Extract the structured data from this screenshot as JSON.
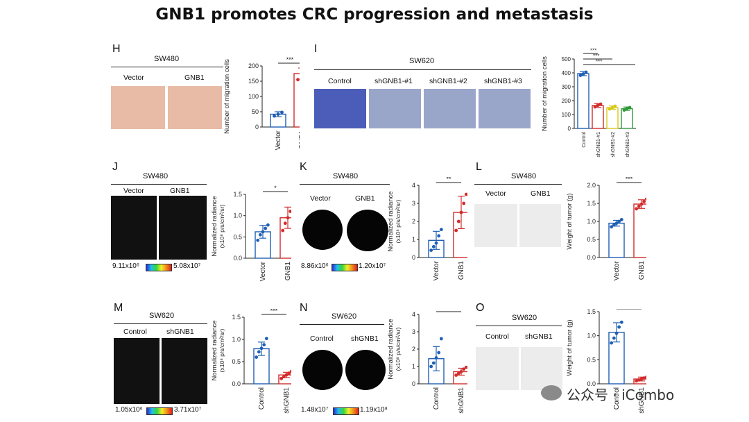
{
  "title": "GNB1 promotes CRC progression and metastasis",
  "panels": {
    "H": {
      "label": "H",
      "cell_line": "SW480",
      "groups": [
        "Vector",
        "GNB1"
      ],
      "ylabel": "Number of migration cells",
      "sig": "***"
    },
    "I": {
      "label": "I",
      "cell_line": "SW620",
      "groups": [
        "Control",
        "shGNB1-#1",
        "shGNB1-#2",
        "shGNB1-#3"
      ],
      "ylabel": "Number of migration cells",
      "sig": [
        "***",
        "***",
        "***"
      ]
    },
    "J": {
      "label": "J",
      "cell_line": "SW480",
      "groups": [
        "Vector",
        "GNB1"
      ],
      "ylabel": "Normalized radiance",
      "ylabel2": "(x10⁸ p/s/cm²/sr)",
      "sig": "*",
      "scale_min": "9.11x10⁶",
      "scale_max": "5.08x10⁷"
    },
    "K": {
      "label": "K",
      "cell_line": "SW480",
      "groups": [
        "Vector",
        "GNB1"
      ],
      "ylabel": "Normalized radiance",
      "ylabel2": "(x10⁸ p/s/cm²/sr)",
      "sig": "**",
      "scale_min": "8.86x10⁶",
      "scale_max": "1.20x10⁷"
    },
    "L": {
      "label": "L",
      "cell_line": "SW480",
      "groups": [
        "Vector",
        "GNB1"
      ],
      "ylabel": "Weight of tumor (g)",
      "sig": "***"
    },
    "M": {
      "label": "M",
      "cell_line": "SW620",
      "groups": [
        "Control",
        "shGNB1"
      ],
      "ylabel": "Normalized radiance",
      "ylabel2": "(x10⁸ p/s/cm²/sr)",
      "sig": "***",
      "scale_min": "1.05x10⁶",
      "scale_max": "3.71x10⁷"
    },
    "N": {
      "label": "N",
      "cell_line": "SW620",
      "groups": [
        "Control",
        "shGNB1"
      ],
      "ylabel": "Normalized radiance",
      "ylabel2": "(x10⁸ p/s/cm²/sr)",
      "sig": "*",
      "scale_min": "1.48x10⁷",
      "scale_max": "1.19x10⁸"
    },
    "O": {
      "label": "O",
      "cell_line": "SW620",
      "groups": [
        "Control",
        "shGNB1"
      ],
      "ylabel": "Weight of tumor (g)",
      "sig": "***"
    }
  },
  "watermark": "公众号 · iCombo",
  "chart_data": [
    {
      "panel": "H",
      "type": "bar",
      "categories": [
        "Vector",
        "GNB1"
      ],
      "values": [
        42,
        175
      ],
      "errors": [
        8,
        18
      ],
      "points": [
        [
          36,
          42,
          48
        ],
        [
          155,
          178,
          192
        ]
      ],
      "ylim": [
        0,
        200
      ],
      "yticks": [
        0,
        50,
        100,
        150,
        200
      ],
      "colors": [
        "#1f5fb4",
        "#d22b2b"
      ],
      "ylabel": "Number of migration cells"
    },
    {
      "panel": "I",
      "type": "bar",
      "categories": [
        "Control",
        "shGNB1-#1",
        "shGNB1-#2",
        "shGNB1-#3"
      ],
      "values": [
        395,
        165,
        150,
        142
      ],
      "errors": [
        15,
        14,
        12,
        12
      ],
      "points": [
        [
          382,
          392,
          405
        ],
        [
          155,
          166,
          175
        ],
        [
          140,
          150,
          160
        ],
        [
          132,
          143,
          150
        ]
      ],
      "ylim": [
        0,
        500
      ],
      "yticks": [
        0,
        100,
        200,
        300,
        400,
        500
      ],
      "colors": [
        "#1f5fb4",
        "#d22b2b",
        "#d8c81c",
        "#2f9a3a"
      ],
      "ylabel": "Number of migration cells"
    },
    {
      "panel": "J",
      "type": "bar",
      "categories": [
        "Vector",
        "GNB1"
      ],
      "values": [
        0.62,
        0.95
      ],
      "errors": [
        0.15,
        0.25
      ],
      "points": [
        [
          0.42,
          0.55,
          0.62,
          0.7,
          0.78
        ],
        [
          0.65,
          0.82,
          0.95,
          1.1,
          1.2
        ]
      ],
      "ylim": [
        0,
        1.5
      ],
      "yticks": [
        0.0,
        0.5,
        1.0,
        1.5
      ],
      "colors": [
        "#1f5fb4",
        "#d22b2b"
      ],
      "ylabel": "Normalized radiance"
    },
    {
      "panel": "K",
      "type": "bar",
      "categories": [
        "Vector",
        "GNB1"
      ],
      "values": [
        0.95,
        2.5
      ],
      "errors": [
        0.5,
        0.9
      ],
      "points": [
        [
          0.4,
          0.6,
          0.8,
          1.2,
          1.55
        ],
        [
          1.5,
          2.0,
          2.5,
          3.0,
          3.5
        ]
      ],
      "ylim": [
        0,
        4
      ],
      "yticks": [
        0,
        1,
        2,
        3,
        4
      ],
      "colors": [
        "#1f5fb4",
        "#d22b2b"
      ],
      "ylabel": "Normalized radiance"
    },
    {
      "panel": "L",
      "type": "bar",
      "categories": [
        "Vector",
        "GNB1"
      ],
      "values": [
        0.95,
        1.48
      ],
      "errors": [
        0.08,
        0.12
      ],
      "points": [
        [
          0.85,
          0.9,
          0.95,
          1.0,
          1.05
        ],
        [
          1.35,
          1.42,
          1.48,
          1.55,
          1.62
        ]
      ],
      "ylim": [
        0,
        2.0
      ],
      "yticks": [
        0.0,
        0.5,
        1.0,
        1.5,
        2.0
      ],
      "colors": [
        "#1f5fb4",
        "#d22b2b"
      ],
      "ylabel": "Weight of tumor (g)"
    },
    {
      "panel": "M",
      "type": "bar",
      "categories": [
        "Control",
        "shGNB1"
      ],
      "values": [
        0.79,
        0.2
      ],
      "errors": [
        0.15,
        0.06
      ],
      "points": [
        [
          0.6,
          0.72,
          0.8,
          0.88,
          1.02
        ],
        [
          0.12,
          0.16,
          0.2,
          0.24,
          0.28
        ]
      ],
      "ylim": [
        0,
        1.5
      ],
      "yticks": [
        0.0,
        0.5,
        1.0,
        1.5
      ],
      "colors": [
        "#1f5fb4",
        "#d22b2b"
      ],
      "ylabel": "Normalized radiance"
    },
    {
      "panel": "N",
      "type": "bar",
      "categories": [
        "Control",
        "shGNB1"
      ],
      "values": [
        1.45,
        0.7
      ],
      "errors": [
        0.7,
        0.2
      ],
      "points": [
        [
          1.0,
          1.2,
          1.5,
          1.8,
          2.6
        ],
        [
          0.5,
          0.6,
          0.7,
          0.85,
          0.95
        ]
      ],
      "ylim": [
        0,
        4
      ],
      "yticks": [
        0,
        1,
        2,
        3,
        4
      ],
      "colors": [
        "#1f5fb4",
        "#d22b2b"
      ],
      "ylabel": "Normalized radiance"
    },
    {
      "panel": "O",
      "type": "bar",
      "categories": [
        "Control",
        "shGNB1"
      ],
      "values": [
        1.07,
        0.1
      ],
      "errors": [
        0.2,
        0.04
      ],
      "points": [
        [
          0.85,
          0.95,
          1.05,
          1.18,
          1.28
        ],
        [
          0.06,
          0.08,
          0.1,
          0.12,
          0.14
        ]
      ],
      "ylim": [
        0,
        1.5
      ],
      "yticks": [
        0.0,
        0.5,
        1.0,
        1.5
      ],
      "colors": [
        "#1f5fb4",
        "#d22b2b"
      ],
      "ylabel": "Weight of tumor (g)"
    }
  ]
}
